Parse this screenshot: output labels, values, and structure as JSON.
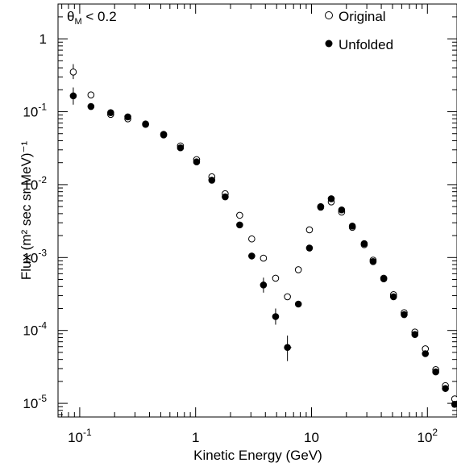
{
  "chart_data": {
    "type": "scatter",
    "x_scale": "log",
    "y_scale": "log",
    "xlabel": "Kinetic Energy (GeV)",
    "ylabel": "Flux (m² sec sr MeV)⁻¹",
    "xlim": [
      0.065,
      180
    ],
    "ylim": [
      6.5e-06,
      3
    ],
    "annotation": "θM < 0.2",
    "legend_position": "top-right",
    "x_ticks": [
      {
        "value": 0.1,
        "label": "10",
        "exp": "-1"
      },
      {
        "value": 1,
        "label": "1",
        "exp": ""
      },
      {
        "value": 10,
        "label": "10",
        "exp": ""
      },
      {
        "value": 100,
        "label": "10",
        "exp": "2"
      }
    ],
    "y_ticks": [
      {
        "value": 1,
        "label": "1",
        "exp": ""
      },
      {
        "value": 0.1,
        "label": "10",
        "exp": "-1"
      },
      {
        "value": 0.01,
        "label": "10",
        "exp": "-2"
      },
      {
        "value": 0.001,
        "label": "10",
        "exp": "-3"
      },
      {
        "value": 0.0001,
        "label": "10",
        "exp": "-4"
      },
      {
        "value": 1e-05,
        "label": "10",
        "exp": "-5"
      }
    ],
    "series": [
      {
        "name": "Original",
        "marker": "open-circle",
        "points": [
          {
            "x": 0.088,
            "y": 0.35,
            "yerr": [
              0.28,
              0.45
            ]
          },
          {
            "x": 0.125,
            "y": 0.17
          },
          {
            "x": 0.185,
            "y": 0.092
          },
          {
            "x": 0.26,
            "y": 0.08
          },
          {
            "x": 0.37,
            "y": 0.067
          },
          {
            "x": 0.53,
            "y": 0.048
          },
          {
            "x": 0.74,
            "y": 0.034
          },
          {
            "x": 1.02,
            "y": 0.022
          },
          {
            "x": 1.38,
            "y": 0.0128
          },
          {
            "x": 1.8,
            "y": 0.0075
          },
          {
            "x": 2.4,
            "y": 0.0038
          },
          {
            "x": 3.05,
            "y": 0.0018
          },
          {
            "x": 3.85,
            "y": 0.00098
          },
          {
            "x": 4.9,
            "y": 0.00052
          },
          {
            "x": 6.2,
            "y": 0.00029
          },
          {
            "x": 7.7,
            "y": 0.00068
          },
          {
            "x": 9.6,
            "y": 0.0024
          },
          {
            "x": 12.0,
            "y": 0.0049
          },
          {
            "x": 14.8,
            "y": 0.0058
          },
          {
            "x": 18.2,
            "y": 0.0042
          },
          {
            "x": 22.5,
            "y": 0.0026
          },
          {
            "x": 28.5,
            "y": 0.0015
          },
          {
            "x": 34.0,
            "y": 0.00092
          },
          {
            "x": 42.0,
            "y": 0.00052
          },
          {
            "x": 51.0,
            "y": 0.00031
          },
          {
            "x": 63.0,
            "y": 0.000175
          },
          {
            "x": 78.0,
            "y": 9.5e-05
          },
          {
            "x": 96.0,
            "y": 5.6e-05
          },
          {
            "x": 118.0,
            "y": 2.9e-05
          },
          {
            "x": 143.0,
            "y": 1.75e-05
          },
          {
            "x": 172.0,
            "y": 1.15e-05
          }
        ]
      },
      {
        "name": "Unfolded",
        "marker": "filled-circle",
        "points": [
          {
            "x": 0.088,
            "y": 0.165,
            "yerr": [
              0.125,
              0.215
            ]
          },
          {
            "x": 0.125,
            "y": 0.118,
            "yerr": [
              0.108,
              0.13
            ]
          },
          {
            "x": 0.185,
            "y": 0.097
          },
          {
            "x": 0.26,
            "y": 0.085
          },
          {
            "x": 0.37,
            "y": 0.068
          },
          {
            "x": 0.53,
            "y": 0.049
          },
          {
            "x": 0.74,
            "y": 0.032
          },
          {
            "x": 1.02,
            "y": 0.0205
          },
          {
            "x": 1.38,
            "y": 0.0115
          },
          {
            "x": 1.8,
            "y": 0.0068
          },
          {
            "x": 2.4,
            "y": 0.0028
          },
          {
            "x": 3.05,
            "y": 0.00105
          },
          {
            "x": 3.85,
            "y": 0.00042,
            "yerr": [
              0.00033,
              0.00053
            ]
          },
          {
            "x": 4.9,
            "y": 0.000155,
            "yerr": [
              0.00012,
              0.0002
            ]
          },
          {
            "x": 6.2,
            "y": 5.85e-05,
            "xerr": [
              5.8,
              6.7
            ],
            "yerr": [
              3.8e-05,
              8.5e-05
            ]
          },
          {
            "x": 7.7,
            "y": 0.00023
          },
          {
            "x": 9.6,
            "y": 0.00135
          },
          {
            "x": 12.0,
            "y": 0.005
          },
          {
            "x": 14.8,
            "y": 0.0064
          },
          {
            "x": 18.2,
            "y": 0.0045
          },
          {
            "x": 22.5,
            "y": 0.0027
          },
          {
            "x": 28.5,
            "y": 0.00155
          },
          {
            "x": 34.0,
            "y": 0.00088
          },
          {
            "x": 42.0,
            "y": 0.00051
          },
          {
            "x": 51.0,
            "y": 0.00029
          },
          {
            "x": 63.0,
            "y": 0.000165
          },
          {
            "x": 78.0,
            "y": 8.8e-05
          },
          {
            "x": 96.0,
            "y": 4.8e-05
          },
          {
            "x": 118.0,
            "y": 2.7e-05
          },
          {
            "x": 143.0,
            "y": 1.6e-05
          },
          {
            "x": 172.0,
            "y": 9.7e-06
          }
        ]
      }
    ]
  }
}
